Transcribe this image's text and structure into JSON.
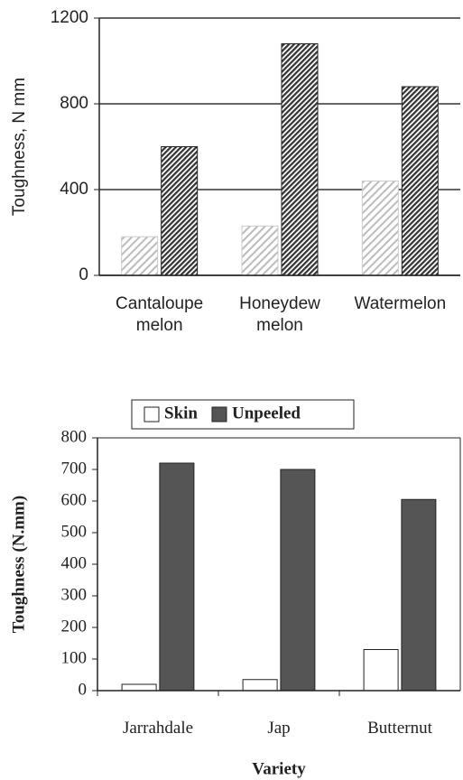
{
  "chart_data": [
    {
      "type": "bar",
      "y_label": "Toughness, N mm",
      "categories": [
        "Cantaloupe melon",
        "Honeydew melon",
        "Watermelon"
      ],
      "series": [
        {
          "color": "#bbbbbb",
          "pattern": "hatch",
          "values": [
            180,
            230,
            440
          ]
        },
        {
          "color": "#333333",
          "pattern": "hatch",
          "values": [
            600,
            1080,
            880
          ]
        }
      ],
      "ylim": [
        0,
        1200
      ],
      "yticks": [
        0,
        400,
        800,
        1200
      ],
      "grid": true
    },
    {
      "type": "bar",
      "x_label": "Variety",
      "y_label": "Toughness (N.mm)",
      "categories": [
        "Jarrahdale",
        "Jap",
        "Butternut"
      ],
      "series": [
        {
          "name": "Skin",
          "color": "#ffffff",
          "values": [
            20,
            35,
            130
          ]
        },
        {
          "name": "Unpeeled",
          "color": "#555555",
          "values": [
            720,
            700,
            605
          ]
        }
      ],
      "ylim": [
        0,
        800
      ],
      "yticks": [
        0,
        100,
        200,
        300,
        400,
        500,
        600,
        700,
        800
      ],
      "grid": false,
      "legend": "top"
    }
  ]
}
